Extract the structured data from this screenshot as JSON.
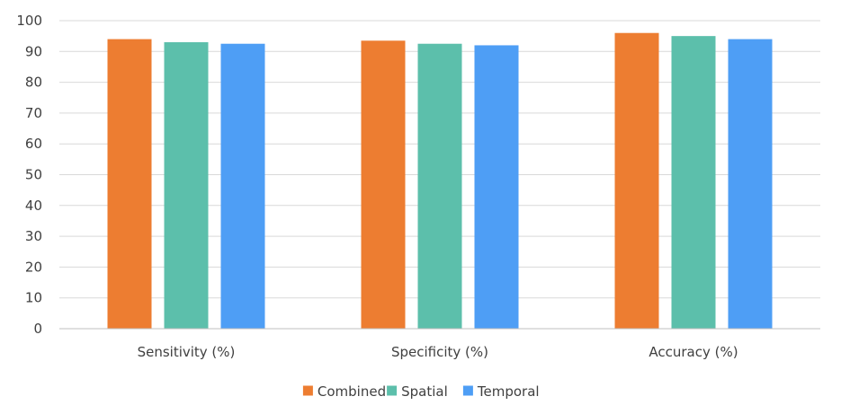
{
  "chart_data": {
    "type": "bar",
    "title": "",
    "xlabel": "",
    "ylabel": "",
    "categories": [
      "Sensitivity (%)",
      "Specificity (%)",
      "Accuracy (%)"
    ],
    "series": [
      {
        "name": "Combined",
        "color": "#ED7D31",
        "values": [
          94,
          93.5,
          96
        ]
      },
      {
        "name": "Spatial",
        "color": "#5CBFAB",
        "values": [
          93,
          92.5,
          95
        ]
      },
      {
        "name": "Temporal",
        "color": "#4E9EF5",
        "values": [
          92.5,
          92,
          94
        ]
      }
    ],
    "ylim": [
      0,
      100
    ],
    "yticks": [
      0,
      10,
      20,
      30,
      40,
      50,
      60,
      70,
      80,
      90,
      100
    ],
    "grid": true,
    "legend_position": "bottom"
  }
}
